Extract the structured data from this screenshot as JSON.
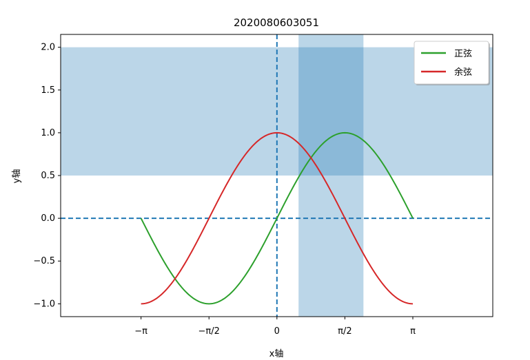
{
  "chart_data": {
    "type": "line",
    "title": "2020080603051",
    "xlabel": "x轴",
    "ylabel": "y轴",
    "xlim": [
      -5.0,
      4.99
    ],
    "ylim": [
      -1.15,
      2.15
    ],
    "x_ticks": [
      {
        "value": -3.14159,
        "label": "−π"
      },
      {
        "value": -1.5708,
        "label": "−π/2"
      },
      {
        "value": 0,
        "label": "0"
      },
      {
        "value": 1.5708,
        "label": "π/2"
      },
      {
        "value": 3.14159,
        "label": "π"
      }
    ],
    "y_ticks": [
      {
        "value": -1.0,
        "label": "−1.0"
      },
      {
        "value": -0.5,
        "label": "−0.5"
      },
      {
        "value": 0.0,
        "label": "0.0"
      },
      {
        "value": 0.5,
        "label": "0.5"
      },
      {
        "value": 1.0,
        "label": "1.0"
      },
      {
        "value": 1.5,
        "label": "1.5"
      },
      {
        "value": 2.0,
        "label": "2.0"
      }
    ],
    "x_range": [
      -3.14159,
      3.14159
    ],
    "series": [
      {
        "name": "正弦",
        "function": "sin",
        "color": "#2ca02c"
      },
      {
        "name": "余弦",
        "function": "cos",
        "color": "#d62728"
      }
    ],
    "hspan": {
      "y_from": 0.5,
      "y_to": 2.0,
      "color": "#1f77b4",
      "alpha": 0.3
    },
    "vspan": {
      "x_from": 0.5,
      "x_to": 2.0,
      "color": "#1f77b4",
      "alpha": 0.3
    },
    "hline": {
      "y": 0,
      "style": "dashed",
      "color": "#1f77b4"
    },
    "vline": {
      "x": 0,
      "style": "dashed",
      "color": "#1f77b4"
    },
    "legend_position": "top-right",
    "grid": false
  }
}
